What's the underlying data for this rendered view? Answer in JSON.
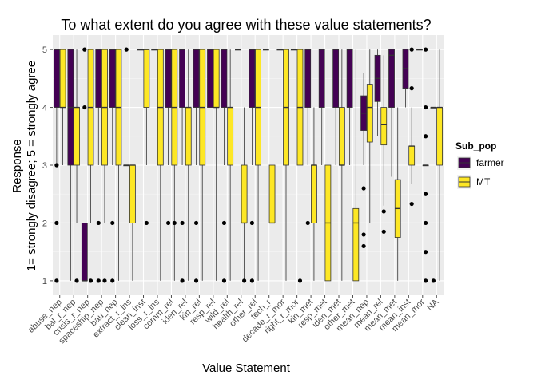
{
  "chart_data": {
    "type": "box",
    "title": "To what extent do you agree with these value statements?",
    "xlabel": "Value Statement",
    "ylabel_lines": [
      "Response",
      "1= strongly disagree; 5 = strongly agree"
    ],
    "ylim": [
      0.75,
      5.25
    ],
    "y_ticks": [
      1,
      2,
      3,
      4,
      5
    ],
    "grid": true,
    "legend": {
      "title": "Sub_pop",
      "position": "right",
      "entries": [
        {
          "name": "farmer",
          "color": "#440154"
        },
        {
          "name": "MT",
          "color": "#FDE725"
        }
      ]
    },
    "categories": [
      "abuse_nep",
      "bal_r_nep",
      "crisis_r_nep",
      "spaceship_nep",
      "bau_nep",
      "extract_r_ins",
      "clean_inst",
      "loss_r_ins",
      "comm_rel",
      "iden_rel",
      "kin_rel",
      "resp_rel",
      "wild_rel",
      "health_rel",
      "other_rel",
      "tech_r",
      "decade_r_mor",
      "right_r_mor",
      "kin_met",
      "resp_met",
      "iden_met",
      "other_met",
      "mean_nep",
      "mean_rel",
      "mean_met",
      "mean_inst",
      "mean_mor",
      "NA"
    ],
    "series": [
      {
        "name": "farmer",
        "boxes": [
          {
            "cat": "abuse_nep",
            "q1": 4,
            "med": 5,
            "q3": 5,
            "lo": 3,
            "hi": 5,
            "out": [
              1,
              2,
              3
            ]
          },
          {
            "cat": "bal_r_nep",
            "q1": 3,
            "med": 4,
            "q3": 5,
            "lo": 1,
            "hi": 5,
            "out": []
          },
          {
            "cat": "crisis_r_nep",
            "q1": 1,
            "med": 1,
            "q3": 2,
            "lo": 1,
            "hi": 2,
            "out": [
              4,
              5
            ]
          },
          {
            "cat": "spaceship_nep",
            "q1": 4,
            "med": 5,
            "q3": 5,
            "lo": 3,
            "hi": 5,
            "out": [
              1,
              2
            ]
          },
          {
            "cat": "bau_nep",
            "q1": 4,
            "med": 5,
            "q3": 5,
            "lo": 3,
            "hi": 5,
            "out": [
              1,
              2
            ]
          },
          {
            "cat": "extract_r_ins",
            "q1": 3,
            "med": 3,
            "q3": 3,
            "lo": 3,
            "hi": 3,
            "out": [
              5
            ]
          },
          {
            "cat": "clean_inst",
            "q1": 5,
            "med": 5,
            "q3": 5,
            "lo": 5,
            "hi": 5,
            "out": []
          },
          {
            "cat": "loss_r_ins",
            "q1": 5,
            "med": 5,
            "q3": 5,
            "lo": 5,
            "hi": 5,
            "out": []
          },
          {
            "cat": "comm_rel",
            "q1": 4,
            "med": 5,
            "q3": 5,
            "lo": 3,
            "hi": 5,
            "out": [
              2
            ]
          },
          {
            "cat": "iden_rel",
            "q1": 4,
            "med": 5,
            "q3": 5,
            "lo": 3,
            "hi": 5,
            "out": [
              1,
              2
            ]
          },
          {
            "cat": "kin_rel",
            "q1": 4,
            "med": 5,
            "q3": 5,
            "lo": 3,
            "hi": 5,
            "out": [
              1,
              2
            ]
          },
          {
            "cat": "resp_rel",
            "q1": 4,
            "med": 5,
            "q3": 5,
            "lo": 4,
            "hi": 5,
            "out": []
          },
          {
            "cat": "wild_rel",
            "q1": 4,
            "med": 5,
            "q3": 5,
            "lo": 3,
            "hi": 5,
            "out": [
              1,
              2
            ]
          },
          {
            "cat": "health_rel",
            "q1": 5,
            "med": 5,
            "q3": 5,
            "lo": 5,
            "hi": 5,
            "out": []
          },
          {
            "cat": "other_rel",
            "q1": 4,
            "med": 5,
            "q3": 5,
            "lo": 3,
            "hi": 5,
            "out": [
              1,
              2
            ]
          },
          {
            "cat": "tech_r",
            "q1": 5,
            "med": 5,
            "q3": 5,
            "lo": 5,
            "hi": 5,
            "out": []
          },
          {
            "cat": "decade_r_mor",
            "q1": 5,
            "med": 5,
            "q3": 5,
            "lo": 5,
            "hi": 5,
            "out": []
          },
          {
            "cat": "right_r_mor",
            "q1": 5,
            "med": 5,
            "q3": 5,
            "lo": 5,
            "hi": 5,
            "out": []
          },
          {
            "cat": "kin_met",
            "q1": 4,
            "med": 5,
            "q3": 5,
            "lo": 3,
            "hi": 5,
            "out": [
              2
            ]
          },
          {
            "cat": "resp_met",
            "q1": 4,
            "med": 5,
            "q3": 5,
            "lo": 3,
            "hi": 5,
            "out": []
          },
          {
            "cat": "iden_met",
            "q1": 4,
            "med": 5,
            "q3": 5,
            "lo": 3,
            "hi": 5,
            "out": []
          },
          {
            "cat": "other_met",
            "q1": 4,
            "med": 5,
            "q3": 5,
            "lo": 3,
            "hi": 5,
            "out": []
          },
          {
            "cat": "mean_nep",
            "q1": 3.6,
            "med": 3.9,
            "q3": 4.2,
            "lo": 3,
            "hi": 4.6,
            "out": [
              2.6,
              1.8,
              1.6
            ]
          },
          {
            "cat": "mean_rel",
            "q1": 4.1,
            "med": 4.5,
            "q3": 4.9,
            "lo": 3.5,
            "hi": 5,
            "out": []
          },
          {
            "cat": "mean_met",
            "q1": 4,
            "med": 4.9,
            "q3": 5,
            "lo": 2.8,
            "hi": 5,
            "out": []
          },
          {
            "cat": "mean_inst",
            "q1": 4.33,
            "med": 4.67,
            "q3": 5,
            "lo": 4,
            "hi": 5,
            "out": []
          },
          {
            "cat": "mean_mor",
            "q1": 5,
            "med": 5,
            "q3": 5,
            "lo": 5,
            "hi": 5,
            "out": []
          },
          {
            "cat": "NA",
            "q1": 4,
            "med": 4,
            "q3": 4,
            "lo": 4,
            "hi": 4,
            "out": [
              1
            ]
          }
        ]
      },
      {
        "name": "MT",
        "boxes": [
          {
            "cat": "abuse_nep",
            "q1": 4,
            "med": 4,
            "q3": 5,
            "lo": 3,
            "hi": 5,
            "out": []
          },
          {
            "cat": "bal_r_nep",
            "q1": 3,
            "med": 4,
            "q3": 4,
            "lo": 2,
            "hi": 5,
            "out": [
              1
            ]
          },
          {
            "cat": "crisis_r_nep",
            "q1": 3,
            "med": 4,
            "q3": 5,
            "lo": 2,
            "hi": 5,
            "out": [
              1
            ]
          },
          {
            "cat": "spaceship_nep",
            "q1": 3,
            "med": 4,
            "q3": 5,
            "lo": 2,
            "hi": 5,
            "out": [
              1
            ]
          },
          {
            "cat": "bau_nep",
            "q1": 3,
            "med": 4,
            "q3": 5,
            "lo": 1,
            "hi": 5,
            "out": []
          },
          {
            "cat": "extract_r_ins",
            "q1": 2,
            "med": 3,
            "q3": 3,
            "lo": 1,
            "hi": 3,
            "out": []
          },
          {
            "cat": "clean_inst",
            "q1": 4,
            "med": 5,
            "q3": 5,
            "lo": 3,
            "hi": 5,
            "out": [
              2
            ]
          },
          {
            "cat": "loss_r_ins",
            "q1": 3,
            "med": 4,
            "q3": 5,
            "lo": 1,
            "hi": 5,
            "out": []
          },
          {
            "cat": "comm_rel",
            "q1": 3,
            "med": 4,
            "q3": 5,
            "lo": 1,
            "hi": 5,
            "out": [
              2
            ]
          },
          {
            "cat": "iden_rel",
            "q1": 3,
            "med": 4,
            "q3": 4,
            "lo": 1,
            "hi": 5,
            "out": []
          },
          {
            "cat": "kin_rel",
            "q1": 3,
            "med": 4,
            "q3": 5,
            "lo": 1,
            "hi": 5,
            "out": []
          },
          {
            "cat": "resp_rel",
            "q1": 4,
            "med": 4,
            "q3": 5,
            "lo": 1,
            "hi": 5,
            "out": []
          },
          {
            "cat": "wild_rel",
            "q1": 3,
            "med": 4,
            "q3": 4,
            "lo": 1,
            "hi": 5,
            "out": []
          },
          {
            "cat": "health_rel",
            "q1": 2,
            "med": 2,
            "q3": 3,
            "lo": 1,
            "hi": 4,
            "out": [
              1
            ]
          },
          {
            "cat": "other_rel",
            "q1": 3,
            "med": 4,
            "q3": 5,
            "lo": 1,
            "hi": 5,
            "out": []
          },
          {
            "cat": "tech_r",
            "q1": 2,
            "med": 2,
            "q3": 3,
            "lo": 1,
            "hi": 4,
            "out": []
          },
          {
            "cat": "decade_r_mor",
            "q1": 3,
            "med": 4,
            "q3": 5,
            "lo": 1,
            "hi": 5,
            "out": []
          },
          {
            "cat": "right_r_mor",
            "q1": 3,
            "med": 4,
            "q3": 5,
            "lo": 2,
            "hi": 5,
            "out": [
              1
            ]
          },
          {
            "cat": "kin_met",
            "q1": 2,
            "med": 3,
            "q3": 3,
            "lo": 1,
            "hi": 4,
            "out": []
          },
          {
            "cat": "resp_met",
            "q1": 1,
            "med": 2,
            "q3": 3,
            "lo": 1,
            "hi": 5,
            "out": []
          },
          {
            "cat": "iden_met",
            "q1": 3,
            "med": 3,
            "q3": 4,
            "lo": 1,
            "hi": 5,
            "out": []
          },
          {
            "cat": "other_met",
            "q1": 1,
            "med": 2,
            "q3": 2.25,
            "lo": 1,
            "hi": 5,
            "out": []
          },
          {
            "cat": "mean_nep",
            "q1": 3.4,
            "med": 4,
            "q3": 4.4,
            "lo": 2,
            "hi": 5,
            "out": []
          },
          {
            "cat": "mean_rel",
            "q1": 3.35,
            "med": 3.7,
            "q3": 4,
            "lo": 2.3,
            "hi": 4.9,
            "out": [
              2.2,
              1.85
            ]
          },
          {
            "cat": "mean_met",
            "q1": 1.75,
            "med": 2.25,
            "q3": 2.75,
            "lo": 1,
            "hi": 4,
            "out": []
          },
          {
            "cat": "mean_inst",
            "q1": 3,
            "med": 3.33,
            "q3": 3.33,
            "lo": 2.67,
            "hi": 4,
            "out": [
              2.33,
              4.33,
              5
            ]
          },
          {
            "cat": "mean_mor",
            "q1": 3,
            "med": 3,
            "q3": 3,
            "lo": 3,
            "hi": 3,
            "out": [
              2.5,
              2,
              3.5,
              1.5,
              1,
              4,
              5
            ]
          },
          {
            "cat": "NA",
            "q1": 3,
            "med": 4,
            "q3": 4,
            "lo": 1,
            "hi": 5,
            "out": []
          }
        ]
      }
    ]
  }
}
